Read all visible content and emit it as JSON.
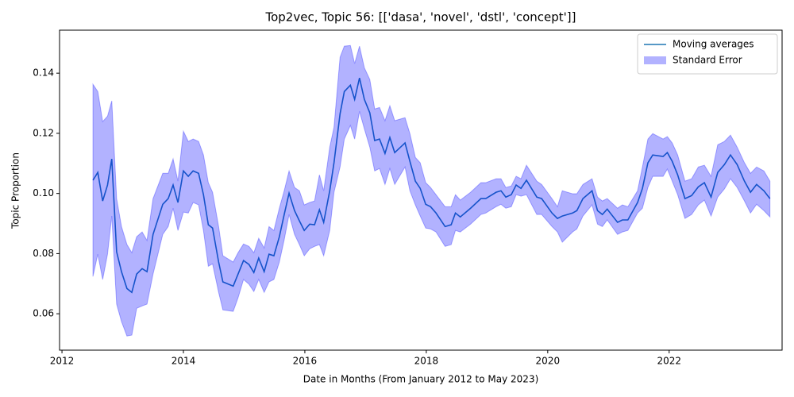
{
  "chart_data": {
    "type": "line",
    "title": "Top2vec, Topic 56: [['dasa', 'novel', 'dstl', 'concept']]",
    "x_label": "Date in Months (From January 2012 to May 2023)",
    "y_label": "Topic Proportion",
    "xlim": [
      2011.96,
      2023.86
    ],
    "ylim": [
      0.0479,
      0.1543
    ],
    "xticks": [
      2012,
      2014,
      2016,
      2018,
      2020,
      2022
    ],
    "yticks": [
      0.06,
      0.08,
      {
        "value": 0.1,
        "label": "0.10"
      },
      0.12,
      0.14
    ],
    "legend": "upper right",
    "x": [
      2012.51,
      2012.59,
      2012.67,
      2012.75,
      2012.82,
      2012.9,
      2012.98,
      2013.07,
      2013.15,
      2013.23,
      2013.32,
      2013.4,
      2013.5,
      2013.66,
      2013.75,
      2013.83,
      2013.91,
      2014.0,
      2014.08,
      2014.16,
      2014.25,
      2014.33,
      2014.41,
      2014.48,
      2014.58,
      2014.65,
      2014.82,
      2014.9,
      2014.99,
      2015.08,
      2015.16,
      2015.24,
      2015.33,
      2015.41,
      2015.49,
      2015.58,
      2015.66,
      2015.74,
      2015.83,
      2015.91,
      2015.99,
      2016.08,
      2016.16,
      2016.24,
      2016.31,
      2016.41,
      2016.48,
      2016.58,
      2016.65,
      2016.75,
      2016.82,
      2016.9,
      2016.98,
      2017.07,
      2017.15,
      2017.23,
      2017.32,
      2017.4,
      2017.48,
      2017.65,
      2017.73,
      2017.82,
      2017.9,
      2017.99,
      2018.07,
      2018.16,
      2018.31,
      2018.41,
      2018.48,
      2018.56,
      2018.73,
      2018.9,
      2018.98,
      2019.15,
      2019.23,
      2019.31,
      2019.4,
      2019.48,
      2019.56,
      2019.65,
      2019.82,
      2019.9,
      2020.07,
      2020.16,
      2020.24,
      2020.41,
      2020.48,
      2020.58,
      2020.73,
      2020.82,
      2020.9,
      2020.98,
      2021.15,
      2021.23,
      2021.32,
      2021.48,
      2021.56,
      2021.65,
      2021.73,
      2021.9,
      2021.97,
      2022.05,
      2022.14,
      2022.26,
      2022.37,
      2022.48,
      2022.58,
      2022.69,
      2022.8,
      2022.91,
      2023.01,
      2023.12,
      2023.24,
      2023.34,
      2023.44,
      2023.56,
      2023.66
    ],
    "series": [
      {
        "name": "Moving averages",
        "color": "#1f77b4",
        "values": [
          0.1044,
          0.107,
          0.0975,
          0.1028,
          0.1115,
          0.0806,
          0.074,
          0.0684,
          0.0671,
          0.0732,
          0.075,
          0.074,
          0.0864,
          0.0964,
          0.0983,
          0.1028,
          0.097,
          0.1075,
          0.1057,
          0.1075,
          0.1067,
          0.0996,
          0.0896,
          0.0885,
          0.0772,
          0.0706,
          0.0692,
          0.0732,
          0.0777,
          0.0764,
          0.0737,
          0.0785,
          0.074,
          0.0798,
          0.0793,
          0.0856,
          0.093,
          0.1001,
          0.0943,
          0.0909,
          0.0877,
          0.0898,
          0.0896,
          0.0946,
          0.0904,
          0.1009,
          0.1102,
          0.1265,
          0.1339,
          0.136,
          0.1313,
          0.1384,
          0.1313,
          0.1268,
          0.1176,
          0.1181,
          0.1133,
          0.1186,
          0.1136,
          0.1168,
          0.1107,
          0.1041,
          0.1017,
          0.0964,
          0.0956,
          0.0935,
          0.089,
          0.0896,
          0.0935,
          0.0922,
          0.0951,
          0.0983,
          0.0983,
          0.1004,
          0.1009,
          0.0988,
          0.0996,
          0.1028,
          0.1017,
          0.1044,
          0.0988,
          0.0983,
          0.0935,
          0.0917,
          0.0925,
          0.0935,
          0.0943,
          0.0983,
          0.1009,
          0.0943,
          0.093,
          0.0948,
          0.0904,
          0.0912,
          0.0912,
          0.097,
          0.1017,
          0.1102,
          0.1128,
          0.1123,
          0.1136,
          0.1107,
          0.1062,
          0.0983,
          0.0993,
          0.1022,
          0.1036,
          0.0988,
          0.107,
          0.1096,
          0.1128,
          0.1096,
          0.1041,
          0.1004,
          0.103,
          0.1009,
          0.0983
        ]
      },
      {
        "name": "Standard Error",
        "color": "#0000ff",
        "alpha": 0.3,
        "upper": [
          0.1363,
          0.1339,
          0.1239,
          0.1257,
          0.1308,
          0.0983,
          0.089,
          0.083,
          0.0803,
          0.0856,
          0.0872,
          0.0844,
          0.0983,
          0.1067,
          0.1067,
          0.1115,
          0.1041,
          0.1207,
          0.1173,
          0.1181,
          0.1173,
          0.1128,
          0.1036,
          0.1004,
          0.089,
          0.0793,
          0.0772,
          0.0803,
          0.0832,
          0.0824,
          0.0803,
          0.0851,
          0.0819,
          0.089,
          0.0877,
          0.0951,
          0.1009,
          0.1075,
          0.102,
          0.1009,
          0.0962,
          0.097,
          0.0975,
          0.1062,
          0.1009,
          0.1154,
          0.122,
          0.1453,
          0.149,
          0.1492,
          0.1432,
          0.149,
          0.1418,
          0.1379,
          0.1281,
          0.1286,
          0.1242,
          0.1292,
          0.1242,
          0.1252,
          0.1199,
          0.112,
          0.1102,
          0.1036,
          0.102,
          0.0996,
          0.0956,
          0.0956,
          0.0996,
          0.0978,
          0.1004,
          0.1036,
          0.1036,
          0.1049,
          0.1049,
          0.102,
          0.1025,
          0.1057,
          0.1049,
          0.1094,
          0.1041,
          0.103,
          0.0983,
          0.0956,
          0.1009,
          0.0999,
          0.0999,
          0.103,
          0.1049,
          0.0988,
          0.0975,
          0.0983,
          0.0951,
          0.0962,
          0.0956,
          0.1009,
          0.1088,
          0.1181,
          0.1199,
          0.1181,
          0.1189,
          0.1168,
          0.1128,
          0.1041,
          0.1049,
          0.1088,
          0.1094,
          0.1057,
          0.1162,
          0.1173,
          0.1194,
          0.1154,
          0.1102,
          0.1067,
          0.1088,
          0.1075,
          0.1041
        ],
        "lower": [
          0.0724,
          0.0798,
          0.0714,
          0.0798,
          0.0925,
          0.0632,
          0.0574,
          0.0526,
          0.0529,
          0.0618,
          0.0626,
          0.0632,
          0.0732,
          0.0864,
          0.089,
          0.0951,
          0.0877,
          0.0938,
          0.0935,
          0.097,
          0.0962,
          0.0877,
          0.0758,
          0.0766,
          0.0671,
          0.0613,
          0.0608,
          0.0653,
          0.0714,
          0.0698,
          0.0674,
          0.0714,
          0.0671,
          0.0706,
          0.0714,
          0.0772,
          0.0846,
          0.093,
          0.0864,
          0.083,
          0.0793,
          0.0816,
          0.0824,
          0.083,
          0.0793,
          0.0877,
          0.1004,
          0.1088,
          0.1181,
          0.1226,
          0.1181,
          0.1273,
          0.1215,
          0.1154,
          0.1075,
          0.1083,
          0.103,
          0.1083,
          0.103,
          0.1088,
          0.1009,
          0.0962,
          0.0925,
          0.0885,
          0.0882,
          0.0872,
          0.0824,
          0.083,
          0.0877,
          0.0872,
          0.0898,
          0.093,
          0.0935,
          0.0956,
          0.0964,
          0.0951,
          0.0956,
          0.0996,
          0.0991,
          0.0996,
          0.093,
          0.093,
          0.089,
          0.0872,
          0.0838,
          0.0872,
          0.0882,
          0.0925,
          0.0962,
          0.0898,
          0.089,
          0.0912,
          0.0864,
          0.0872,
          0.0877,
          0.0935,
          0.0951,
          0.102,
          0.1057,
          0.1057,
          0.1081,
          0.1041,
          0.0996,
          0.0917,
          0.093,
          0.0962,
          0.0978,
          0.0925,
          0.0988,
          0.1015,
          0.1049,
          0.102,
          0.0975,
          0.0935,
          0.0964,
          0.0943,
          0.0922
        ]
      }
    ]
  }
}
